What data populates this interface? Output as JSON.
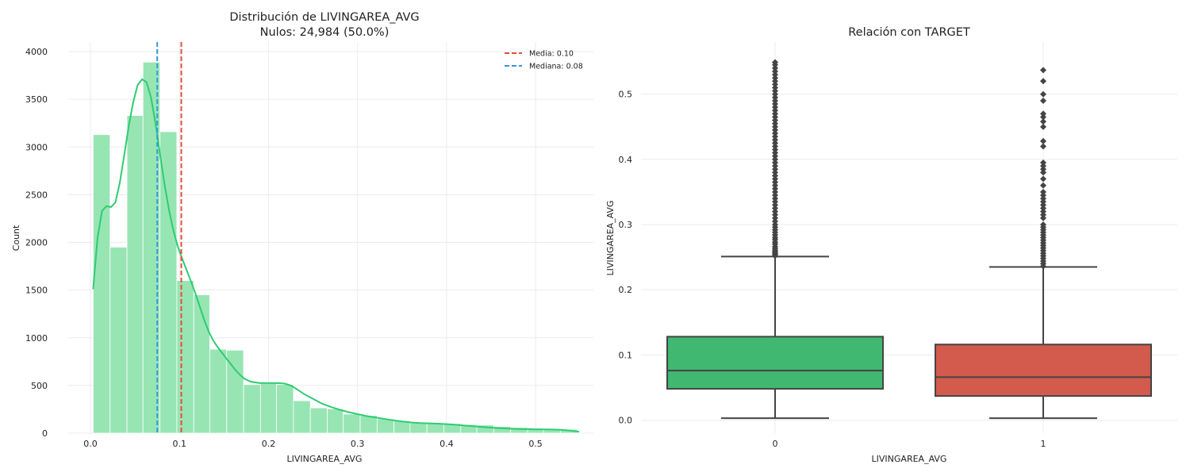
{
  "chart_data": [
    {
      "type": "bar",
      "subtype": "histogram",
      "title": "Distribución de LIVINGAREA_AVG",
      "subtitle": "Nulos: 24,984 (50.0%)",
      "xlabel": "LIVINGAREA_AVG",
      "ylabel": "Count",
      "xlim": [
        -0.025,
        0.565
      ],
      "ylim": [
        0,
        4100
      ],
      "xticks": [
        "0.0",
        "0.1",
        "0.2",
        "0.3",
        "0.4",
        "0.5"
      ],
      "yticks": [
        "0",
        "500",
        "1000",
        "1500",
        "2000",
        "2500",
        "3000",
        "3500",
        "4000"
      ],
      "grid": true,
      "bar_color": "#98e5b4",
      "bins": [
        {
          "x0": 0.003,
          "x1": 0.022,
          "count": 3130
        },
        {
          "x0": 0.022,
          "x1": 0.041,
          "count": 1950
        },
        {
          "x0": 0.041,
          "x1": 0.059,
          "count": 3330
        },
        {
          "x0": 0.059,
          "x1": 0.078,
          "count": 3890
        },
        {
          "x0": 0.078,
          "x1": 0.097,
          "count": 3160
        },
        {
          "x0": 0.097,
          "x1": 0.116,
          "count": 1600
        },
        {
          "x0": 0.116,
          "x1": 0.134,
          "count": 1450
        },
        {
          "x0": 0.134,
          "x1": 0.153,
          "count": 880
        },
        {
          "x0": 0.153,
          "x1": 0.172,
          "count": 870
        },
        {
          "x0": 0.172,
          "x1": 0.191,
          "count": 510
        },
        {
          "x0": 0.191,
          "x1": 0.209,
          "count": 520
        },
        {
          "x0": 0.209,
          "x1": 0.228,
          "count": 510
        },
        {
          "x0": 0.228,
          "x1": 0.247,
          "count": 340
        },
        {
          "x0": 0.247,
          "x1": 0.266,
          "count": 265
        },
        {
          "x0": 0.266,
          "x1": 0.284,
          "count": 255
        },
        {
          "x0": 0.284,
          "x1": 0.303,
          "count": 200
        },
        {
          "x0": 0.303,
          "x1": 0.322,
          "count": 185
        },
        {
          "x0": 0.322,
          "x1": 0.341,
          "count": 150
        },
        {
          "x0": 0.341,
          "x1": 0.359,
          "count": 130
        },
        {
          "x0": 0.359,
          "x1": 0.378,
          "count": 115
        },
        {
          "x0": 0.378,
          "x1": 0.397,
          "count": 105
        },
        {
          "x0": 0.397,
          "x1": 0.416,
          "count": 100
        },
        {
          "x0": 0.416,
          "x1": 0.434,
          "count": 90
        },
        {
          "x0": 0.434,
          "x1": 0.453,
          "count": 85
        },
        {
          "x0": 0.453,
          "x1": 0.472,
          "count": 70
        },
        {
          "x0": 0.472,
          "x1": 0.491,
          "count": 60
        },
        {
          "x0": 0.491,
          "x1": 0.509,
          "count": 50
        },
        {
          "x0": 0.509,
          "x1": 0.528,
          "count": 45
        },
        {
          "x0": 0.528,
          "x1": 0.547,
          "count": 40
        }
      ],
      "kde": {
        "color": "#2ecc71",
        "points": [
          [
            0.003,
            1510
          ],
          [
            0.008,
            2050
          ],
          [
            0.013,
            2330
          ],
          [
            0.018,
            2380
          ],
          [
            0.023,
            2370
          ],
          [
            0.028,
            2420
          ],
          [
            0.033,
            2630
          ],
          [
            0.038,
            2920
          ],
          [
            0.043,
            3220
          ],
          [
            0.048,
            3470
          ],
          [
            0.053,
            3650
          ],
          [
            0.058,
            3710
          ],
          [
            0.063,
            3680
          ],
          [
            0.068,
            3520
          ],
          [
            0.073,
            3250
          ],
          [
            0.078,
            2930
          ],
          [
            0.083,
            2620
          ],
          [
            0.088,
            2350
          ],
          [
            0.093,
            2130
          ],
          [
            0.098,
            1960
          ],
          [
            0.103,
            1830
          ],
          [
            0.108,
            1710
          ],
          [
            0.113,
            1590
          ],
          [
            0.118,
            1460
          ],
          [
            0.123,
            1320
          ],
          [
            0.128,
            1180
          ],
          [
            0.133,
            1060
          ],
          [
            0.138,
            970
          ],
          [
            0.143,
            900
          ],
          [
            0.148,
            840
          ],
          [
            0.153,
            780
          ],
          [
            0.158,
            720
          ],
          [
            0.163,
            660
          ],
          [
            0.168,
            610
          ],
          [
            0.173,
            570
          ],
          [
            0.18,
            540
          ],
          [
            0.19,
            525
          ],
          [
            0.2,
            525
          ],
          [
            0.21,
            525
          ],
          [
            0.218,
            520
          ],
          [
            0.225,
            500
          ],
          [
            0.232,
            460
          ],
          [
            0.24,
            410
          ],
          [
            0.25,
            360
          ],
          [
            0.26,
            310
          ],
          [
            0.27,
            275
          ],
          [
            0.28,
            245
          ],
          [
            0.29,
            220
          ],
          [
            0.3,
            200
          ],
          [
            0.31,
            180
          ],
          [
            0.32,
            165
          ],
          [
            0.33,
            150
          ],
          [
            0.34,
            135
          ],
          [
            0.35,
            122
          ],
          [
            0.36,
            112
          ],
          [
            0.37,
            106
          ],
          [
            0.38,
            103
          ],
          [
            0.39,
            100
          ],
          [
            0.4,
            95
          ],
          [
            0.41,
            88
          ],
          [
            0.42,
            80
          ],
          [
            0.43,
            72
          ],
          [
            0.44,
            65
          ],
          [
            0.45,
            58
          ],
          [
            0.46,
            52
          ],
          [
            0.47,
            47
          ],
          [
            0.48,
            44
          ],
          [
            0.49,
            42
          ],
          [
            0.5,
            41
          ],
          [
            0.51,
            40
          ],
          [
            0.52,
            38
          ],
          [
            0.53,
            34
          ],
          [
            0.54,
            26
          ],
          [
            0.549,
            15
          ]
        ]
      },
      "ref_lines": [
        {
          "label": "Media: 0.10",
          "value": 0.102,
          "color": "#e74c3c"
        },
        {
          "label": "Mediana: 0.08",
          "value": 0.075,
          "color": "#3498db"
        }
      ],
      "legend_position": "top-right"
    },
    {
      "type": "box",
      "title": "Relación con TARGET",
      "xlabel": "LIVINGAREA_AVG",
      "ylabel": "LIVINGAREA_AVG",
      "ylim": [
        -0.02,
        0.58
      ],
      "yticks": [
        "0.0",
        "0.1",
        "0.2",
        "0.3",
        "0.4",
        "0.5"
      ],
      "grid": true,
      "categories": [
        "0",
        "1"
      ],
      "boxes": [
        {
          "category": "0",
          "color": "#41b871",
          "whisker_low": 0.003,
          "q1": 0.048,
          "median": 0.076,
          "q3": 0.128,
          "whisker_high": 0.251,
          "outliers": [
            0.252,
            0.254,
            0.256,
            0.258,
            0.26,
            0.263,
            0.266,
            0.27,
            0.273,
            0.277,
            0.28,
            0.284,
            0.288,
            0.292,
            0.296,
            0.3,
            0.305,
            0.31,
            0.315,
            0.32,
            0.325,
            0.33,
            0.335,
            0.34,
            0.345,
            0.35,
            0.355,
            0.36,
            0.365,
            0.37,
            0.375,
            0.38,
            0.385,
            0.39,
            0.395,
            0.4,
            0.405,
            0.41,
            0.415,
            0.42,
            0.425,
            0.43,
            0.435,
            0.44,
            0.445,
            0.45,
            0.455,
            0.46,
            0.465,
            0.47,
            0.475,
            0.48,
            0.485,
            0.49,
            0.495,
            0.5,
            0.505,
            0.51,
            0.515,
            0.52,
            0.525,
            0.53,
            0.535,
            0.54,
            0.545,
            0.549
          ]
        },
        {
          "category": "1",
          "color": "#d35b4d",
          "whisker_low": 0.003,
          "q1": 0.037,
          "median": 0.066,
          "q3": 0.116,
          "whisker_high": 0.235,
          "outliers": [
            0.236,
            0.24,
            0.244,
            0.248,
            0.252,
            0.256,
            0.26,
            0.264,
            0.268,
            0.272,
            0.276,
            0.28,
            0.284,
            0.288,
            0.292,
            0.296,
            0.3,
            0.31,
            0.315,
            0.32,
            0.325,
            0.33,
            0.335,
            0.34,
            0.345,
            0.35,
            0.36,
            0.37,
            0.38,
            0.385,
            0.39,
            0.395,
            0.42,
            0.428,
            0.45,
            0.458,
            0.465,
            0.47,
            0.49,
            0.5,
            0.52,
            0.537
          ]
        }
      ]
    }
  ]
}
